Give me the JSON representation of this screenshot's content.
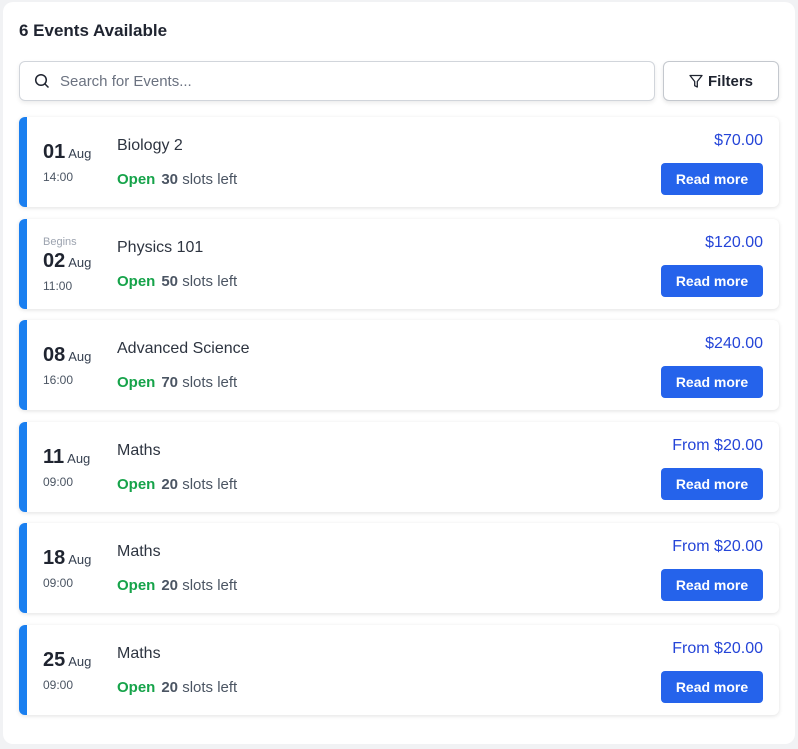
{
  "header": {
    "title": "6 Events Available"
  },
  "search": {
    "placeholder": "Search for Events..."
  },
  "filters": {
    "label": "Filters"
  },
  "events": [
    {
      "begins": "",
      "day": "01",
      "month": "Aug",
      "time": "14:00",
      "name": "Biology 2",
      "status": "Open",
      "slots": "30",
      "slots_suffix": "slots left",
      "price": "$70.00",
      "button": "Read more"
    },
    {
      "begins": "Begins",
      "day": "02",
      "month": "Aug",
      "time": "11:00",
      "name": "Physics 101",
      "status": "Open",
      "slots": "50",
      "slots_suffix": "slots left",
      "price": "$120.00",
      "button": "Read more"
    },
    {
      "begins": "",
      "day": "08",
      "month": "Aug",
      "time": "16:00",
      "name": "Advanced Science",
      "status": "Open",
      "slots": "70",
      "slots_suffix": "slots left",
      "price": "$240.00",
      "button": "Read more"
    },
    {
      "begins": "",
      "day": "11",
      "month": "Aug",
      "time": "09:00",
      "name": "Maths",
      "status": "Open",
      "slots": "20",
      "slots_suffix": "slots left",
      "price": "From $20.00",
      "button": "Read more"
    },
    {
      "begins": "",
      "day": "18",
      "month": "Aug",
      "time": "09:00",
      "name": "Maths",
      "status": "Open",
      "slots": "20",
      "slots_suffix": "slots left",
      "price": "From $20.00",
      "button": "Read more"
    },
    {
      "begins": "",
      "day": "25",
      "month": "Aug",
      "time": "09:00",
      "name": "Maths",
      "status": "Open",
      "slots": "20",
      "slots_suffix": "slots left",
      "price": "From $20.00",
      "button": "Read more"
    }
  ],
  "colors": {
    "accent": "#1a7ff0",
    "button": "#2563eb",
    "price": "#2545d8",
    "open": "#16a34a"
  }
}
